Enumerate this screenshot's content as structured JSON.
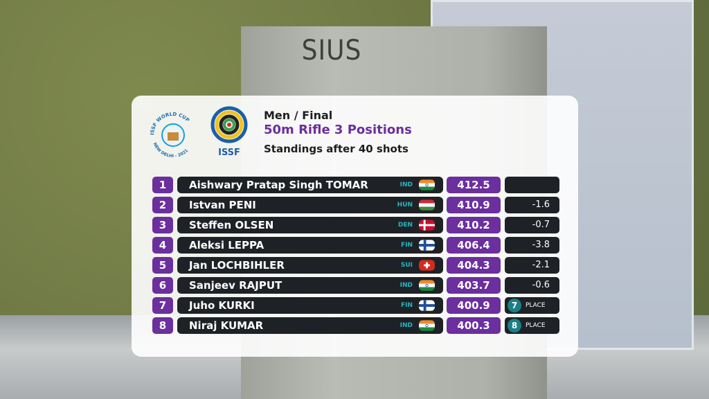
{
  "background": {
    "box_label": "SIUS"
  },
  "logos": {
    "world_cup_top": "ISSF WORLD CUP",
    "world_cup_bottom": "NEW DELHI - 2021",
    "federation": "ISSF"
  },
  "header": {
    "event": "Men / Final",
    "title": "50m Rifle 3 Positions",
    "subtitle": "Standings after 40 shots"
  },
  "standings": [
    {
      "rank": "1",
      "name": "Aishwary Pratap Singh TOMAR",
      "nation": "IND",
      "score": "412.5"
    },
    {
      "rank": "2",
      "name": "Istvan PENI",
      "nation": "HUN",
      "score": "410.9",
      "diff": "-1.6"
    },
    {
      "rank": "3",
      "name": "Steffen OLSEN",
      "nation": "DEN",
      "score": "410.2",
      "diff": "-0.7"
    },
    {
      "rank": "4",
      "name": "Aleksi LEPPA",
      "nation": "FIN",
      "score": "406.4",
      "diff": "-3.8"
    },
    {
      "rank": "5",
      "name": "Jan LOCHBIHLER",
      "nation": "SUI",
      "score": "404.3",
      "diff": "-2.1"
    },
    {
      "rank": "6",
      "name": "Sanjeev RAJPUT",
      "nation": "IND",
      "score": "403.7",
      "diff": "-0.6"
    },
    {
      "rank": "7",
      "name": "Juho KURKI",
      "nation": "FIN",
      "score": "400.9",
      "place": {
        "number": "7",
        "label": "PLACE"
      }
    },
    {
      "rank": "8",
      "name": "Niraj KUMAR",
      "nation": "IND",
      "score": "400.3",
      "place": {
        "number": "8",
        "label": "PLACE"
      }
    }
  ]
}
